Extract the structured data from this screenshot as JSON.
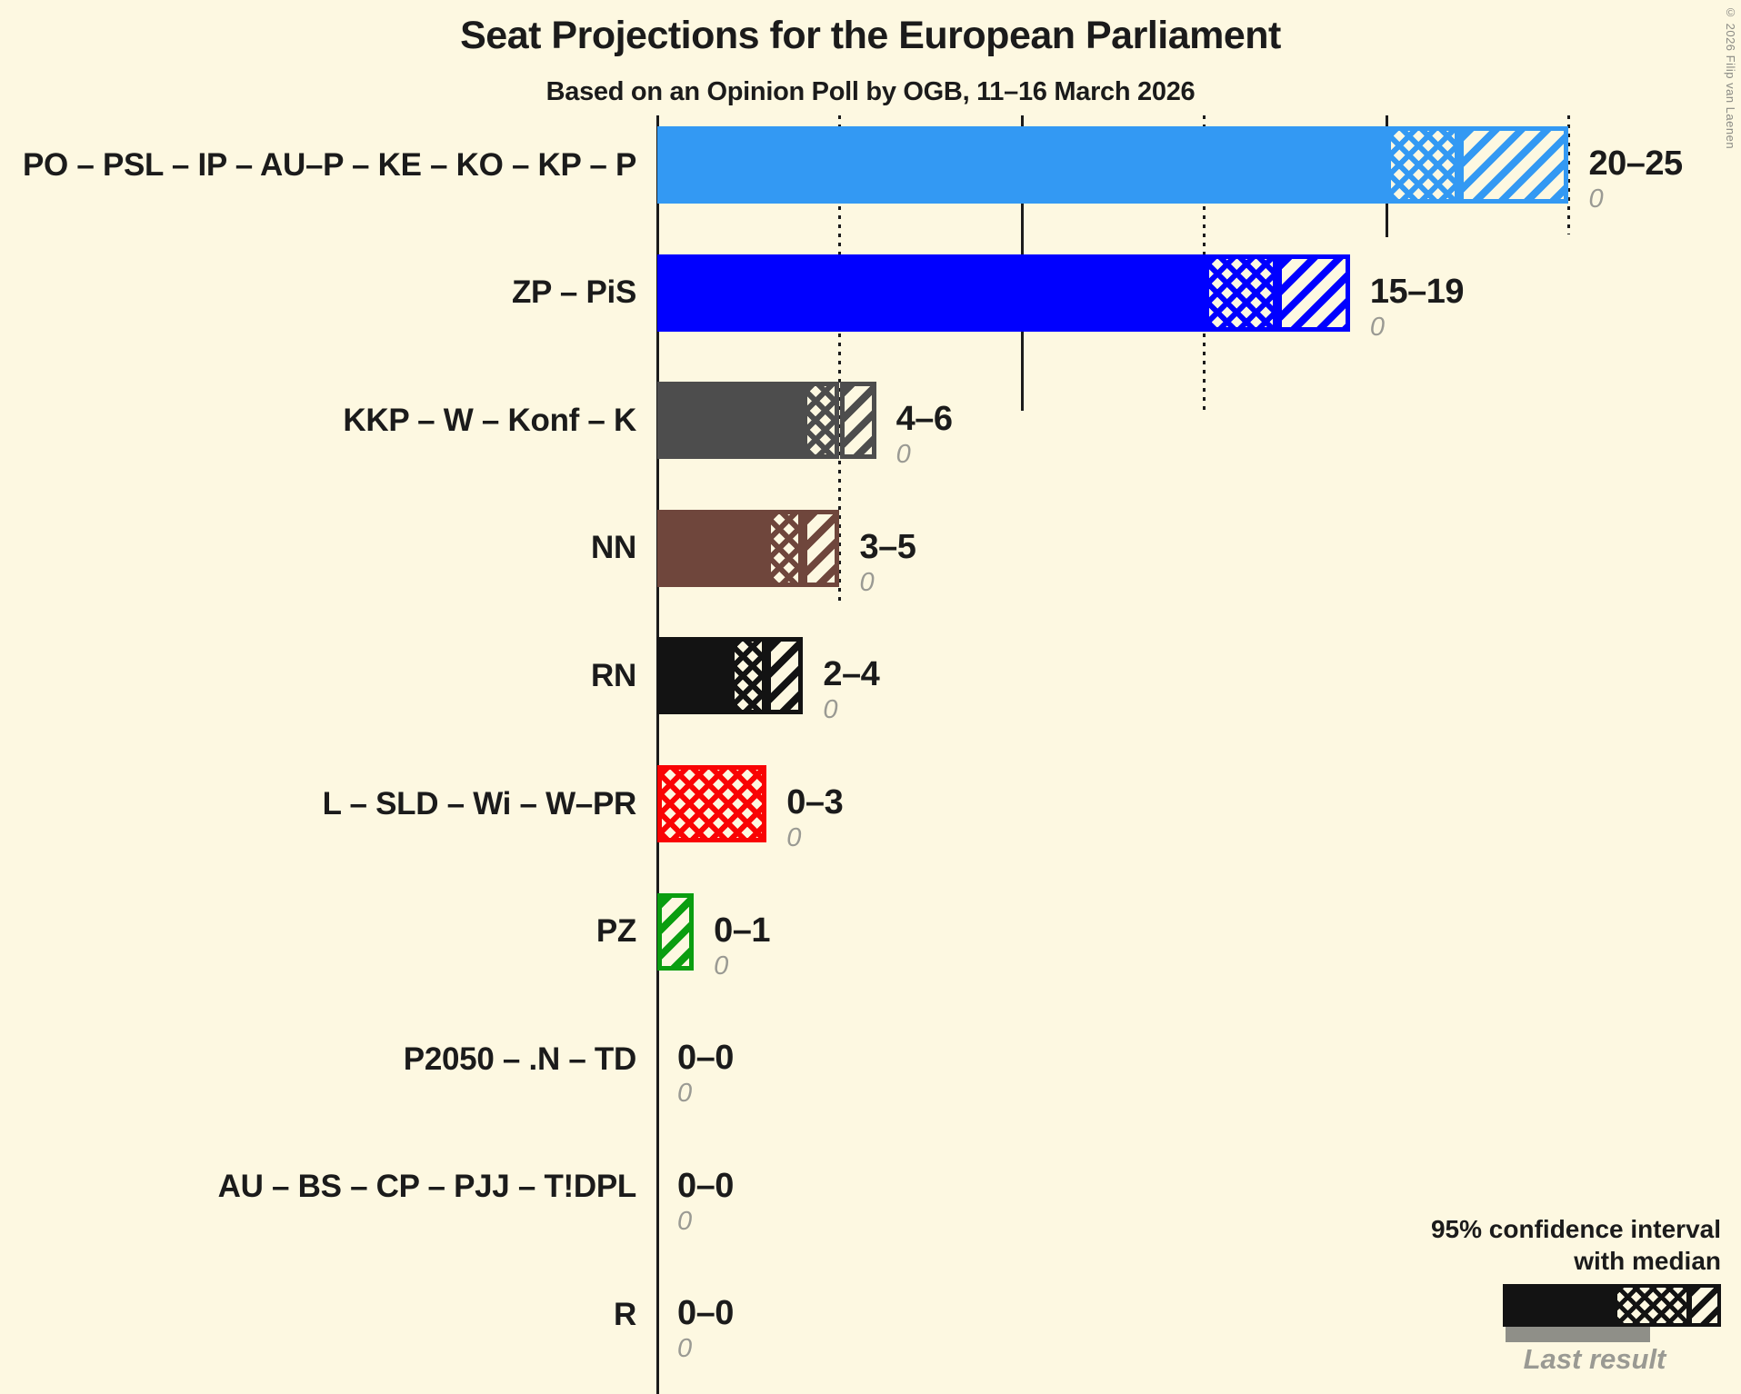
{
  "title": "Seat Projections for the European Parliament",
  "subtitle": "Based on an Opinion Poll by OGB, 11–16 March 2026",
  "copyright": "© 2026 Filip van Laenen",
  "legend": {
    "ci_label_line1": "95% confidence interval",
    "ci_label_line2": "with median",
    "last_result_label": "Last result"
  },
  "colors": {
    "background": "#fdf8e1",
    "text": "#1b1b1b",
    "muted_gray": "#9a9a93",
    "last_result_bar": "#8f8f88"
  },
  "chart_data": {
    "type": "bar",
    "orientation": "horizontal",
    "unit": "seats",
    "x_axis": {
      "min": 0,
      "max": 29,
      "ticks": [
        0,
        5,
        10,
        15,
        20,
        25
      ],
      "solid_ticks": [
        0,
        10,
        20
      ],
      "dotted_ticks": [
        5,
        15,
        25
      ],
      "grid": true
    },
    "bar_pattern_semantics": {
      "solid": "0 to CI lower bound",
      "crosshatch": "CI lower bound to median",
      "diagonal": "median to CI upper bound"
    },
    "rows": [
      {
        "label": "PO – PSL – IP – AU–P – KE – KO – KP – P",
        "ci_low": 20,
        "median": 22,
        "ci_high": 25,
        "value_label": "20–25",
        "last_result": 0,
        "last_result_label": "0",
        "color": "#3399f3"
      },
      {
        "label": "ZP – PiS",
        "ci_low": 15,
        "median": 17,
        "ci_high": 19,
        "value_label": "15–19",
        "last_result": 0,
        "last_result_label": "0",
        "color": "#0000ff"
      },
      {
        "label": "KKP – W – Konf – K",
        "ci_low": 4,
        "median": 5,
        "ci_high": 6,
        "value_label": "4–6",
        "last_result": 0,
        "last_result_label": "0",
        "color": "#4d4d4d"
      },
      {
        "label": "NN",
        "ci_low": 3,
        "median": 4,
        "ci_high": 5,
        "value_label": "3–5",
        "last_result": 0,
        "last_result_label": "0",
        "color": "#6f463c"
      },
      {
        "label": "RN",
        "ci_low": 2,
        "median": 3,
        "ci_high": 4,
        "value_label": "2–4",
        "last_result": 0,
        "last_result_label": "0",
        "color": "#131313"
      },
      {
        "label": "L – SLD – Wi – W–PR",
        "ci_low": 0,
        "median": 3,
        "ci_high": 3,
        "value_label": "0–3",
        "last_result": 0,
        "last_result_label": "0",
        "color": "#f90404"
      },
      {
        "label": "PZ",
        "ci_low": 0,
        "median": 0,
        "ci_high": 1,
        "value_label": "0–1",
        "last_result": 0,
        "last_result_label": "0",
        "color": "#0a9e10"
      },
      {
        "label": "P2050 – .N – TD",
        "ci_low": 0,
        "median": 0,
        "ci_high": 0,
        "value_label": "0–0",
        "last_result": 0,
        "last_result_label": "0",
        "color": null
      },
      {
        "label": "AU – BS – CP – PJJ – T!DPL",
        "ci_low": 0,
        "median": 0,
        "ci_high": 0,
        "value_label": "0–0",
        "last_result": 0,
        "last_result_label": "0",
        "color": null
      },
      {
        "label": "R",
        "ci_low": 0,
        "median": 0,
        "ci_high": 0,
        "value_label": "0–0",
        "last_result": 0,
        "last_result_label": "0",
        "color": null
      }
    ]
  }
}
